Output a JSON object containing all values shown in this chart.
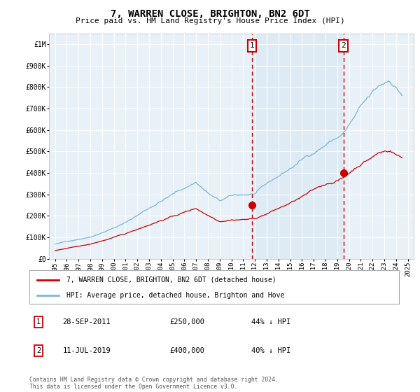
{
  "title": "7, WARREN CLOSE, BRIGHTON, BN2 6DT",
  "subtitle": "Price paid vs. HM Land Registry's House Price Index (HPI)",
  "hpi_color": "#7ab8d9",
  "hpi_fill_color": "#daeaf5",
  "price_color": "#cc0000",
  "background_color": "#e8f0f8",
  "ann_box_color": "#cc0000",
  "ylim": [
    0,
    1050000
  ],
  "yticks": [
    0,
    100000,
    200000,
    300000,
    400000,
    500000,
    600000,
    700000,
    800000,
    900000,
    1000000
  ],
  "legend_label_price": "7, WARREN CLOSE, BRIGHTON, BN2 6DT (detached house)",
  "legend_label_hpi": "HPI: Average price, detached house, Brighton and Hove",
  "annotation1": {
    "label": "1",
    "date": "28-SEP-2011",
    "price": "£250,000",
    "pct": "44% ↓ HPI",
    "x": 2011.75
  },
  "annotation2": {
    "label": "2",
    "date": "11-JUL-2019",
    "price": "£400,000",
    "pct": "40% ↓ HPI",
    "x": 2019.53
  },
  "footer": "Contains HM Land Registry data © Crown copyright and database right 2024.\nThis data is licensed under the Open Government Licence v3.0.",
  "xmin": 1994.5,
  "xmax": 2025.5,
  "xticks": [
    1995,
    1996,
    1997,
    1998,
    1999,
    2000,
    2001,
    2002,
    2003,
    2004,
    2005,
    2006,
    2007,
    2008,
    2009,
    2010,
    2011,
    2012,
    2013,
    2014,
    2015,
    2016,
    2017,
    2018,
    2019,
    2020,
    2021,
    2022,
    2023,
    2024,
    2025
  ]
}
